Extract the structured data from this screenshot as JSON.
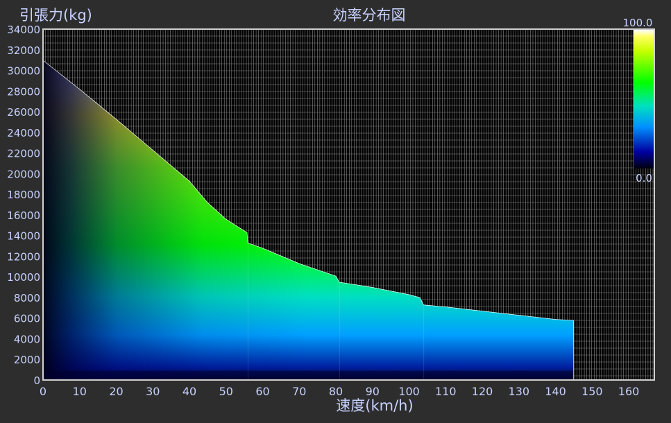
{
  "chart_data": {
    "type": "heatmap",
    "title": "効率分布図",
    "xlabel": "速度(km/h)",
    "ylabel": "引張力(kg)",
    "xlim": [
      0,
      167
    ],
    "ylim": [
      0,
      34000
    ],
    "x_ticks": [
      "0",
      "10",
      "20",
      "30",
      "40",
      "50",
      "60",
      "70",
      "80",
      "90",
      "100",
      "110",
      "120",
      "130",
      "140",
      "150",
      "160"
    ],
    "y_ticks": [
      "0",
      "2000",
      "4000",
      "6000",
      "8000",
      "10000",
      "12000",
      "14000",
      "16000",
      "18000",
      "20000",
      "22000",
      "24000",
      "26000",
      "28000",
      "30000",
      "32000",
      "34000"
    ],
    "colorbar": {
      "max_label": "100.0",
      "min_label": "0.0",
      "range": [
        0,
        100
      ]
    },
    "envelope": {
      "x": [
        0,
        10,
        20,
        30,
        40,
        45,
        50,
        55.8,
        56,
        60,
        70,
        80,
        81,
        90,
        100,
        103,
        104,
        110,
        120,
        130,
        140,
        145
      ],
      "y": [
        31000,
        28200,
        25300,
        22300,
        19300,
        17200,
        15600,
        14300,
        13300,
        12800,
        11300,
        10100,
        9500,
        9000,
        8300,
        8000,
        7300,
        7100,
        6700,
        6300,
        5900,
        5800
      ]
    },
    "segment_boundaries_x": [
      56,
      81,
      104,
      145
    ],
    "colors": {
      "background": "#2d2d2d",
      "plot_background": "#000000",
      "grid": "#8a8a8a",
      "frame": "#d0d0d0",
      "text": "#c8d2ff",
      "low": "#000018",
      "mid": "#00c8ff",
      "high": "#00ff00",
      "peak": "#ffff00"
    }
  }
}
